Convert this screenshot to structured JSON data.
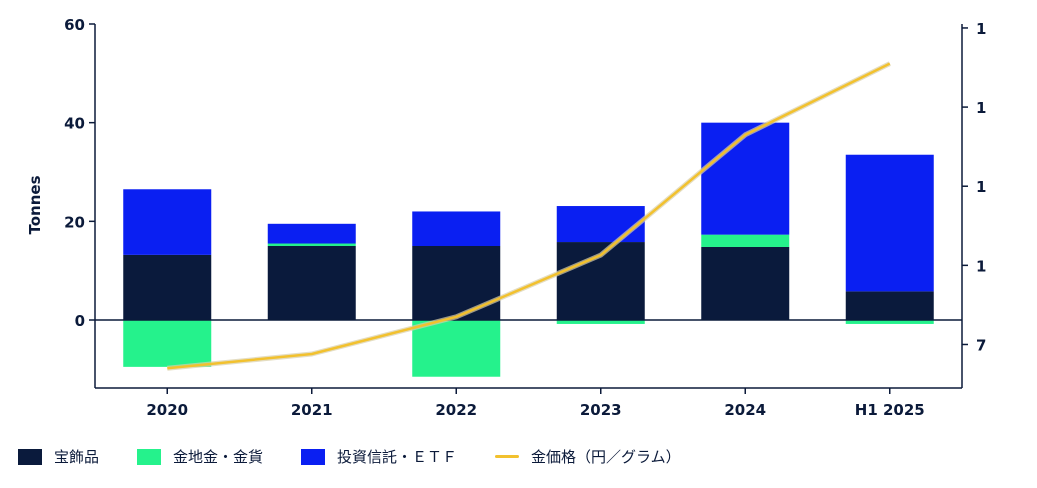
{
  "chart_data": {
    "type": "bar",
    "title": "",
    "xlabel": "",
    "ylabel": "Tonnes",
    "ylim": [
      -14,
      60
    ],
    "yticks": [
      0,
      20,
      40,
      60
    ],
    "y2ticks": [
      "7",
      "1",
      "1",
      "1",
      "1"
    ],
    "y2ticks_values": [
      1,
      2,
      3,
      4,
      5
    ],
    "categories": [
      "2020",
      "2021",
      "2022",
      "2023",
      "2024",
      "H1 2025"
    ],
    "series": [
      {
        "name": "宝飾品",
        "color": "#0a1a3c",
        "values": [
          13.2,
          15.0,
          15.0,
          15.8,
          14.8,
          5.8
        ]
      },
      {
        "name": "金地金・金貨",
        "color": "#25f28c",
        "values": [
          -9.5,
          0.5,
          -11.5,
          -0.8,
          2.5,
          -0.8
        ]
      },
      {
        "name": "投資信託・ＥＴＦ",
        "color": "#0a1ff2",
        "values": [
          13.3,
          4.0,
          7.0,
          7.3,
          22.7,
          27.7
        ]
      }
    ],
    "line_series": {
      "name": "金価格（円／グラム）",
      "color": "#f2c12e",
      "axis": "right",
      "y2lim": [
        0.45,
        5.05
      ],
      "values": [
        0.7,
        0.88,
        1.35,
        2.13,
        3.65,
        4.55
      ]
    },
    "legend_position": "bottom"
  }
}
